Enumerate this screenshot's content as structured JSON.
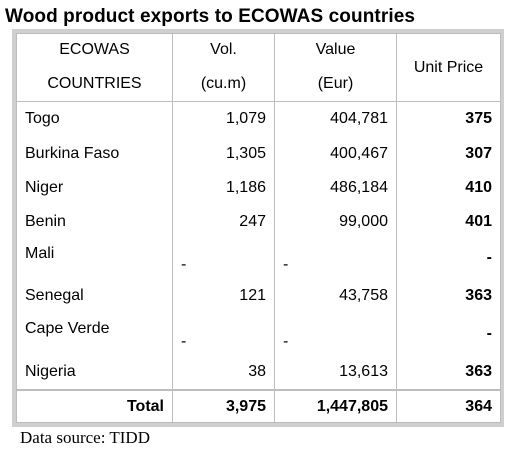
{
  "title": "Wood product exports to ECOWAS countries",
  "headers": {
    "country_line1": "ECOWAS",
    "country_line2": "COUNTRIES",
    "vol_line1": "Vol.",
    "vol_line2": "(cu.m)",
    "value_line1": "Value",
    "value_line2": "(Eur)",
    "unit_price": "Unit Price"
  },
  "rows": [
    {
      "country": "Togo",
      "vol": "1,079",
      "value": "404,781",
      "unit_price": "375"
    },
    {
      "country": "Burkina Faso",
      "vol": "1,305",
      "value": "400,467",
      "unit_price": "307"
    },
    {
      "country": "Niger",
      "vol": "1,186",
      "value": "486,184",
      "unit_price": "410"
    },
    {
      "country": "Benin",
      "vol": "247",
      "value": "99,000",
      "unit_price": "401"
    },
    {
      "country": "Mali",
      "vol": "-",
      "value": "-",
      "unit_price": "-"
    },
    {
      "country": "Senegal",
      "vol": "121",
      "value": "43,758",
      "unit_price": "363"
    },
    {
      "country": "Cape Verde",
      "vol": "-",
      "value": "-",
      "unit_price": "-"
    },
    {
      "country": "Nigeria",
      "vol": "38",
      "value": "13,613",
      "unit_price": "363"
    }
  ],
  "total": {
    "label": "Total",
    "vol": "3,975",
    "value": "1,447,805",
    "unit_price": "364"
  },
  "source": "Data source: TIDD"
}
